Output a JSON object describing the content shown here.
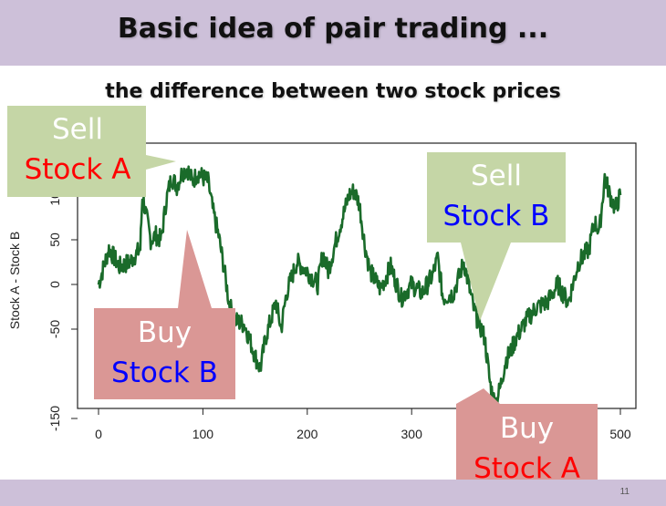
{
  "slide": {
    "title": "Basic idea of pair trading ...",
    "subtitle": "the difference between two stock prices",
    "page_number": "11"
  },
  "colors": {
    "band": "#cdc0d9",
    "sell_callout": "#c5d6a6",
    "buy_callout": "#da9795",
    "series_line": "#1a6b2a"
  },
  "chart_data": {
    "type": "line",
    "xlabel": "",
    "ylabel": "Stock A - Stock B",
    "xlim": [
      0,
      500
    ],
    "ylim": [
      -160,
      135
    ],
    "xticks": [
      "0",
      "100",
      "200",
      "300",
      "400",
      "500"
    ],
    "xtick_values": [
      0,
      100,
      200,
      300,
      400,
      500
    ],
    "yticks": [
      "-150",
      "-50",
      "0",
      "50",
      "100"
    ],
    "ytick_values": [
      -150,
      -50,
      0,
      50,
      100
    ],
    "series": [
      {
        "name": "",
        "x": [
          0,
          10,
          20,
          30,
          40,
          42,
          50,
          55,
          60,
          65,
          70,
          75,
          80,
          85,
          90,
          95,
          100,
          105,
          110,
          115,
          120,
          125,
          130,
          140,
          150,
          155,
          160,
          170,
          175,
          180,
          190,
          200,
          210,
          215,
          220,
          230,
          240,
          245,
          250,
          255,
          260,
          270,
          280,
          290,
          300,
          310,
          320,
          325,
          330,
          340,
          350,
          360,
          370,
          375,
          380,
          385,
          390,
          395,
          400,
          410,
          420,
          430,
          440,
          450,
          460,
          470,
          475,
          480,
          485,
          490,
          495,
          500
        ],
        "y": [
          0,
          40,
          20,
          25,
          40,
          100,
          50,
          55,
          50,
          95,
          120,
          110,
          125,
          130,
          115,
          125,
          120,
          115,
          80,
          55,
          20,
          -20,
          -40,
          -45,
          -80,
          -95,
          -60,
          -20,
          -50,
          -10,
          25,
          15,
          0,
          35,
          15,
          60,
          100,
          105,
          90,
          45,
          15,
          -5,
          20,
          -15,
          0,
          -10,
          10,
          30,
          -15,
          -10,
          25,
          -30,
          -60,
          -110,
          -135,
          -115,
          -85,
          -75,
          -60,
          -40,
          -25,
          -20,
          0,
          -20,
          25,
          40,
          70,
          60,
          120,
          100,
          85,
          100
        ]
      }
    ]
  },
  "callouts": {
    "sell_a": {
      "line1": "Sell",
      "line2": "Stock A"
    },
    "buy_b": {
      "line1": "Buy",
      "line2": "Stock B"
    },
    "sell_b": {
      "line1": "Sell",
      "line2": "Stock B"
    },
    "buy_a": {
      "line1": "Buy",
      "line2": "Stock A"
    }
  }
}
